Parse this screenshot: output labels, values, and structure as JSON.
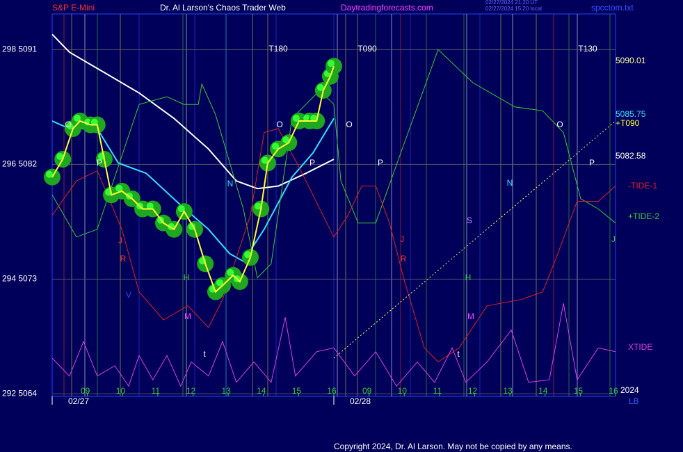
{
  "header": {
    "symbol": "S&P E-Mini",
    "site_title": "Dr. Al Larson's Chaos Trader Web",
    "site_url": "Daytradingforecasts.com",
    "timestamp_ut": "02/27/2024 21:20 UT",
    "timestamp_local": "02/27/2024 15:20 local",
    "file": "spcctom.txt"
  },
  "footer": {
    "copyright": "Copyright 2024, Dr. Al Larson. May not be copied by any means."
  },
  "chart_data": {
    "type": "line",
    "ylim": [
      5063.8,
      5093.8
    ],
    "yticks": [
      {
        "value": 5091,
        "label": "298 5091"
      },
      {
        "value": 5082,
        "label": "296 5082"
      },
      {
        "value": 5073,
        "label": "294 5073"
      },
      {
        "value": 5064,
        "label": "292 5064"
      }
    ],
    "xlim": [
      0,
      16
    ],
    "xticks": [
      {
        "value": 1,
        "label": "09"
      },
      {
        "value": 2,
        "label": "10"
      },
      {
        "value": 3,
        "label": "11"
      },
      {
        "value": 4,
        "label": "12"
      },
      {
        "value": 5,
        "label": "13"
      },
      {
        "value": 6,
        "label": "14"
      },
      {
        "value": 7,
        "label": "15"
      },
      {
        "value": 8,
        "label": "16"
      },
      {
        "value": 9,
        "label": "09"
      },
      {
        "value": 10,
        "label": "10"
      },
      {
        "value": 11,
        "label": "11"
      },
      {
        "value": 12,
        "label": "12"
      },
      {
        "value": 13,
        "label": "13"
      },
      {
        "value": 14,
        "label": "14"
      },
      {
        "value": 15,
        "label": "15"
      },
      {
        "value": 16,
        "label": "16"
      }
    ],
    "date_labels": [
      "02/27",
      "02/28"
    ],
    "grid": true,
    "right_labels": [
      "5090.01",
      "5085.75",
      "+T090",
      "5082.58",
      "2024",
      "LB"
    ],
    "annotations": [
      "O",
      "P",
      "J",
      "R",
      "V",
      "H",
      "M",
      "t",
      "N",
      "T180",
      "O",
      "P",
      "T090",
      "O",
      "P",
      "J",
      "R",
      "S",
      "H",
      "M",
      "t",
      "N",
      "O",
      "P",
      "T130",
      "J"
    ],
    "series": [
      {
        "color": "#ffffff",
        "x": [
          0,
          0.49,
          1.48,
          2.47,
          3.46,
          4.44,
          5.23,
          5.83,
          6.42,
          7.21,
          8.0
        ],
        "values": [
          5092.2,
          5090.8,
          5089.2,
          5087.6,
          5085.6,
          5083.2,
          5080.7,
          5080.1,
          5080.3,
          5081.3,
          5082.4
        ]
      },
      {
        "color": "#33e0ff",
        "x": [
          0,
          0.49,
          1.28,
          1.88,
          2.67,
          3.65,
          4.44,
          5.04,
          5.43,
          6.02,
          6.81,
          7.41,
          8.0
        ],
        "values": [
          5085.4,
          5084.8,
          5084.8,
          5082.1,
          5081.3,
          5078.8,
          5076.9,
          5075.0,
          5074.4,
          5076.9,
          5081.0,
          5082.9,
          5085.6
        ]
      },
      {
        "name": "+TIDE-2",
        "color": "#33cc33",
        "x": [
          0,
          0.69,
          1.28,
          2.47,
          3.26,
          3.75,
          4.15,
          4.25,
          4.64,
          5.43,
          5.83,
          6.22,
          6.81,
          7.6,
          8.0,
          8.2,
          8.69,
          9.19,
          9.98,
          10.96,
          11.95,
          13.14,
          13.93,
          14.52,
          15.01,
          15.51,
          16.0
        ],
        "values": [
          5079.6,
          5076.3,
          5076.9,
          5086.7,
          5087.3,
          5086.7,
          5086.7,
          5088.3,
          5085.9,
          5078.5,
          5073.1,
          5074.2,
          5085.6,
          5087.8,
          5086.7,
          5080.7,
          5077.4,
          5077.4,
          5083.5,
          5091.0,
          5088.4,
          5086.5,
          5086.2,
          5084.5,
          5079.3,
          5078.5,
          5077.4
        ]
      },
      {
        "name": "-TIDE-1",
        "color": "#e02020",
        "x": [
          0,
          0.69,
          1.28,
          1.98,
          2.47,
          3.16,
          3.85,
          4.44,
          4.84,
          5.63,
          6.02,
          6.42,
          7.01,
          7.8,
          8.0,
          8.4,
          8.79,
          9.19,
          9.58,
          9.98,
          10.57,
          10.96,
          11.56,
          12.35,
          13.33,
          13.93,
          14.32,
          14.91,
          15.51,
          16.0
        ],
        "values": [
          5078.0,
          5080.7,
          5081.5,
          5076.9,
          5072.0,
          5069.8,
          5070.9,
          5069.2,
          5071.4,
          5078.0,
          5084.5,
          5084.8,
          5081.8,
          5077.4,
          5076.3,
          5078.0,
          5080.3,
          5080.3,
          5077.4,
          5073.1,
          5067.6,
          5066.5,
          5067.6,
          5070.9,
          5071.4,
          5072.0,
          5074.7,
          5079.1,
          5079.1,
          5080.3
        ]
      },
      {
        "name": "XTIDE",
        "color": "#e040e0",
        "x": [
          0,
          0.49,
          0.89,
          1.28,
          1.78,
          2.17,
          2.47,
          2.86,
          3.26,
          3.65,
          3.95,
          4.44,
          4.84,
          5.23,
          5.73,
          6.22,
          6.62,
          6.91,
          7.51,
          8.0,
          8.59,
          9.19,
          9.78,
          10.37,
          10.86,
          11.36,
          11.75,
          12.35,
          13.04,
          13.53,
          14.12,
          14.52,
          14.91,
          15.51,
          16.0
        ],
        "values": [
          5066.8,
          5065.4,
          5068.1,
          5065.4,
          5066.2,
          5064.6,
          5067.0,
          5065.1,
          5067.0,
          5064.6,
          5066.5,
          5065.4,
          5068.1,
          5064.9,
          5066.5,
          5064.9,
          5070.0,
          5065.4,
          5067.3,
          5067.6,
          5065.4,
          5067.3,
          5064.6,
          5066.5,
          5064.9,
          5067.6,
          5064.9,
          5066.5,
          5069.0,
          5064.9,
          5065.1,
          5071.1,
          5065.1,
          5067.6,
          5067.3
        ]
      },
      {
        "color": "#ffff33",
        "x": [
          0,
          0.3,
          0.59,
          0.79,
          1.09,
          1.28,
          1.48,
          1.68,
          1.98,
          2.27,
          2.57,
          2.86,
          3.16,
          3.46,
          3.75,
          4.05,
          4.35,
          4.64,
          4.84,
          5.14,
          5.33,
          5.63,
          5.93,
          6.12,
          6.42,
          6.72,
          7.01,
          7.31,
          7.51,
          7.7,
          7.9,
          8.0
        ],
        "values": [
          5081.0,
          5082.4,
          5084.8,
          5085.4,
          5085.1,
          5085.1,
          5082.4,
          5079.6,
          5079.9,
          5079.3,
          5078.5,
          5078.5,
          5077.4,
          5076.9,
          5078.3,
          5076.9,
          5074.2,
          5072.0,
          5072.5,
          5073.3,
          5072.8,
          5074.7,
          5078.5,
          5082.1,
          5083.2,
          5083.7,
          5085.4,
          5085.4,
          5085.4,
          5087.8,
          5088.9,
          5089.7
        ]
      },
      {
        "color": "#ffff66",
        "x": [
          8.0,
          16.0
        ],
        "values": [
          5066.8,
          5085.4
        ]
      }
    ]
  }
}
